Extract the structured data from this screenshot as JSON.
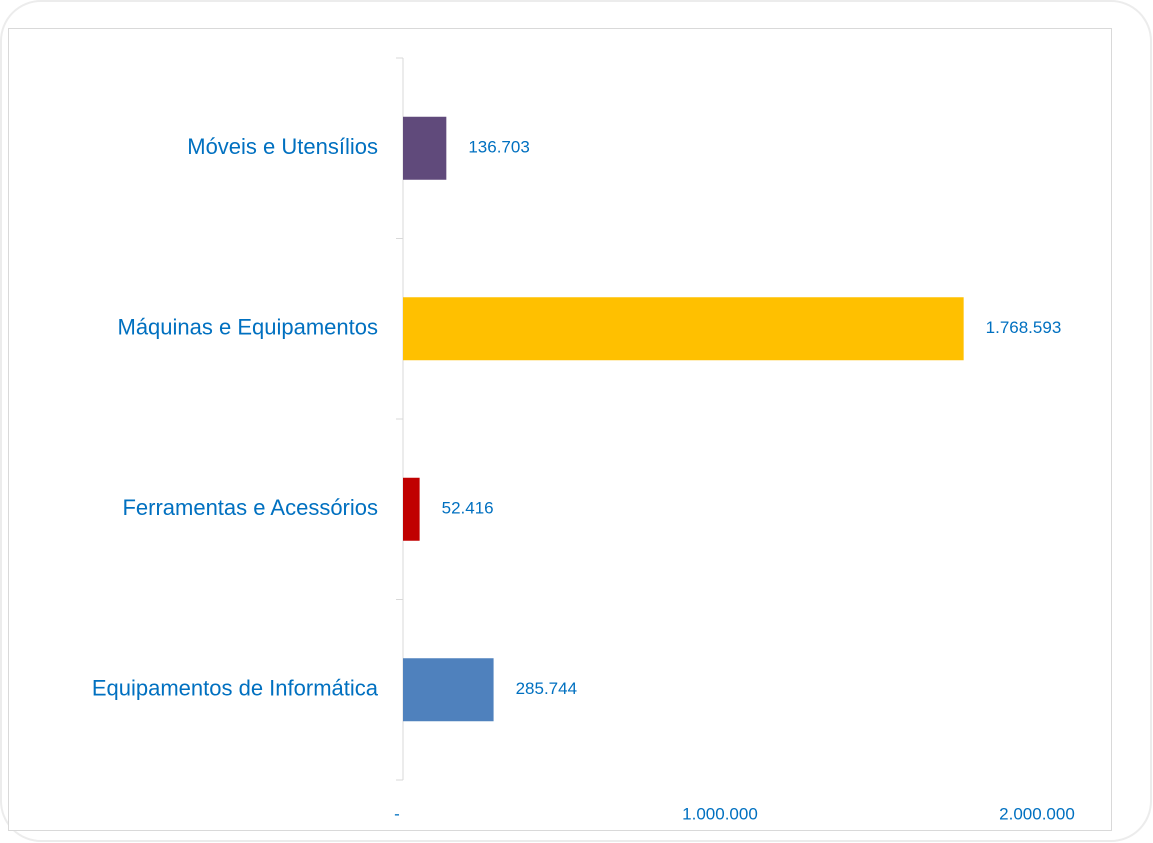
{
  "chart_data": {
    "type": "bar",
    "orientation": "horizontal",
    "categories": [
      "Móveis e Utensílios",
      "Máquinas e Equipamentos",
      "Ferramentas e Acessórios",
      "Equipamentos de Informática"
    ],
    "values": [
      136703,
      1768593,
      52416,
      285744
    ],
    "value_labels": [
      "136.703",
      "1.768.593",
      "52.416",
      "285.744"
    ],
    "colors": [
      "#604a7b",
      "#ffc000",
      "#c00000",
      "#4f81bd"
    ],
    "xlim": [
      0,
      2000000
    ],
    "xticks": [
      {
        "value": 0,
        "label": "-"
      },
      {
        "value": 1000000,
        "label": "1.000.000"
      },
      {
        "value": 2000000,
        "label": "2.000.000"
      }
    ],
    "grid": false
  }
}
